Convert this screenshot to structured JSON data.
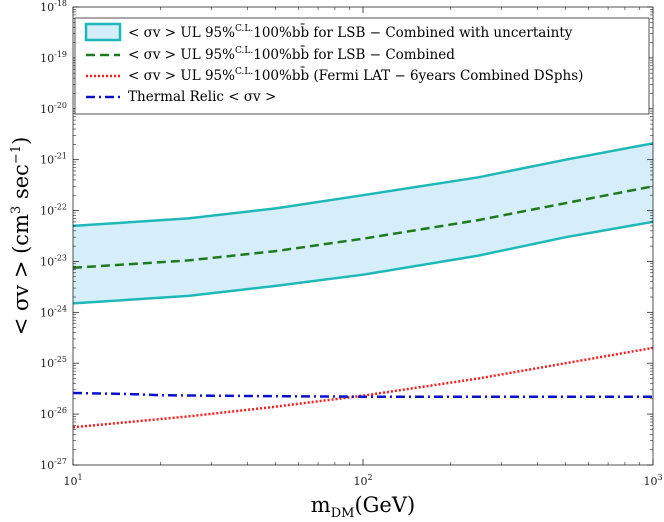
{
  "chart_data": {
    "type": "line",
    "x_scale": "log",
    "y_scale": "log",
    "xlim": [
      10,
      1000
    ],
    "ylim": [
      1e-27,
      1e-18
    ],
    "xlabel": "mDM(GeV)",
    "ylabel": "< σv > (cm3 sec−1)",
    "x_ticks": [
      {
        "value": 10,
        "base": "10",
        "exp": "1"
      },
      {
        "value": 100,
        "base": "10",
        "exp": "2"
      },
      {
        "value": 1000,
        "base": "10",
        "exp": "3"
      }
    ],
    "y_ticks": [
      {
        "value": 1e-27,
        "base": "10",
        "exp": "-27"
      },
      {
        "value": 1e-26,
        "base": "10",
        "exp": "-26"
      },
      {
        "value": 1e-25,
        "base": "10",
        "exp": "-25"
      },
      {
        "value": 1e-24,
        "base": "10",
        "exp": "-24"
      },
      {
        "value": 1e-23,
        "base": "10",
        "exp": "-23"
      },
      {
        "value": 1e-22,
        "base": "10",
        "exp": "-22"
      },
      {
        "value": 1e-21,
        "base": "10",
        "exp": "-21"
      },
      {
        "value": 1e-20,
        "base": "10",
        "exp": "-20"
      },
      {
        "value": 1e-19,
        "base": "10",
        "exp": "-19"
      },
      {
        "value": 1e-18,
        "base": "10",
        "exp": "-18"
      }
    ],
    "band": {
      "name": "< σv >  UL 95%C.L.100%bb̄ for LSB − Combined with uncertainty",
      "x": [
        10,
        25,
        50,
        100,
        250,
        500,
        1000
      ],
      "upper": [
        5e-23,
        7e-23,
        1.1e-22,
        2e-22,
        4.5e-22,
        1e-21,
        2.1e-21
      ],
      "lower": [
        1.5e-24,
        2.1e-24,
        3.3e-24,
        5.5e-24,
        1.3e-23,
        3e-23,
        6e-23
      ],
      "fill_color": "#d6eef9",
      "edge_color": "#1fb8b8"
    },
    "series": [
      {
        "name": "< σv >  UL 95%C.L.100%bb̄ for LSB − Combined",
        "style": "dashed",
        "color": "#1e7a1e",
        "x": [
          10,
          25,
          50,
          100,
          250,
          500,
          1000
        ],
        "y": [
          7.5e-24,
          1.05e-23,
          1.6e-23,
          2.8e-23,
          6.5e-23,
          1.4e-22,
          3e-22
        ]
      },
      {
        "name": "< σv >  UL 95%C.L.100%bb̄ (Fermi LAT  −  6years Combined DSphs)",
        "style": "dotted",
        "color": "#ff1a1a",
        "x": [
          10,
          25,
          50,
          100,
          250,
          500,
          1000
        ],
        "y": [
          5.5e-27,
          9e-27,
          1.4e-26,
          2.3e-26,
          5e-26,
          1e-25,
          2e-25
        ]
      },
      {
        "name": "Thermal Relic  < σv >",
        "style": "dashdot",
        "color": "#0a12c8",
        "x": [
          10,
          15,
          20,
          30,
          50,
          100,
          200,
          500,
          1000
        ],
        "y": [
          2.6e-26,
          2.5e-26,
          2.35e-26,
          2.3e-26,
          2.25e-26,
          2.2e-26,
          2.2e-26,
          2.2e-26,
          2.2e-26
        ]
      }
    ],
    "legend": {
      "location": "top",
      "entries": [
        {
          "pre": "< σv >  UL 95%",
          "sup": "C.L.",
          "post": "100%bb̄ for LSB − Combined with uncertainty"
        },
        {
          "pre": "< σv >  UL 95%",
          "sup": "C.L.",
          "post": "100%bb̄ for LSB − Combined"
        },
        {
          "pre": "< σv >  UL 95%",
          "sup": "C.L.",
          "post": "100%bb̄ (Fermi LAT  −  6years Combined DSphs)"
        },
        {
          "pre": "Thermal Relic  < σv >",
          "sup": "",
          "post": ""
        }
      ]
    },
    "axis_labels": {
      "x_main": "m",
      "x_sub": "DM",
      "x_rest": "(GeV)",
      "y_main": "< σv >  (cm",
      "y_sup": "3",
      "y_mid": " sec",
      "y_sup2": "−1",
      "y_end": ")"
    }
  }
}
